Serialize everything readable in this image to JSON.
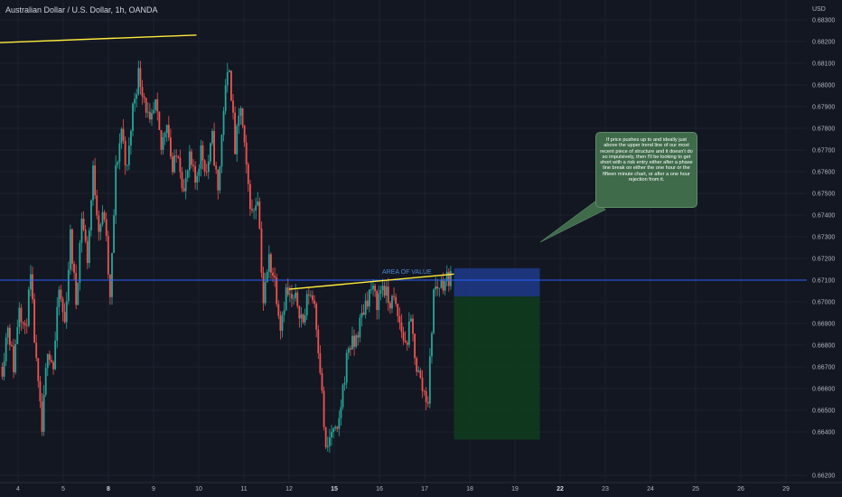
{
  "header": {
    "title": "Australian Dollar / U.S. Dollar, 1h, OANDA"
  },
  "chart_data": {
    "type": "candlestick",
    "title": "Australian Dollar / U.S. Dollar, 1h, OANDA",
    "currency_label": "USD",
    "ylim": [
      0.662,
      0.684
    ],
    "y_ticks": [
      "0.68300",
      "0.68200",
      "0.68100",
      "0.68000",
      "0.67900",
      "0.67800",
      "0.67700",
      "0.67600",
      "0.67500",
      "0.67400",
      "0.67300",
      "0.67200",
      "0.67100",
      "0.67000",
      "0.66900",
      "0.66800",
      "0.66700",
      "0.66600",
      "0.66500",
      "0.66400",
      "0.66200"
    ],
    "x_ticks": [
      "4",
      "5",
      "8",
      "9",
      "10",
      "11",
      "12",
      "15",
      "16",
      "17",
      "18",
      "19",
      "22",
      "23",
      "24",
      "25",
      "26",
      "29"
    ],
    "bold_x_ticks": [
      "8",
      "15",
      "22"
    ],
    "current_price": 0.671,
    "price_path": [
      0.667,
      0.669,
      0.667,
      0.67,
      0.6685,
      0.671,
      0.667,
      0.664,
      0.668,
      0.667,
      0.6705,
      0.669,
      0.673,
      0.67,
      0.674,
      0.672,
      0.676,
      0.6735,
      0.674,
      0.67,
      0.676,
      0.678,
      0.676,
      0.679,
      0.6805,
      0.6795,
      0.678,
      0.679,
      0.677,
      0.6785,
      0.676,
      0.677,
      0.675,
      0.6765,
      0.6755,
      0.677,
      0.676,
      0.6775,
      0.675,
      0.679,
      0.681,
      0.677,
      0.679,
      0.676,
      0.674,
      0.675,
      0.67,
      0.672,
      0.671,
      0.669,
      0.6705,
      0.67,
      0.67,
      0.669,
      0.6705,
      0.67,
      0.667,
      0.663,
      0.664,
      0.6638,
      0.666,
      0.668,
      0.668,
      0.669,
      0.67,
      0.6706,
      0.67,
      0.6708,
      0.67,
      0.67,
      0.669,
      0.668,
      0.669,
      0.667,
      0.666,
      0.6655,
      0.6705,
      0.6708,
      0.671,
      0.6712
    ],
    "trendlines": [
      {
        "name": "upper trend line",
        "start": {
          "x": -0.4,
          "y": 0.68195
        },
        "end": {
          "x": 3.95,
          "y": 0.6823
        }
      },
      {
        "name": "lower trend line",
        "start": {
          "x": 6.0,
          "y": 0.67058
        },
        "end": {
          "x": 9.65,
          "y": 0.67128
        }
      }
    ],
    "current_price_line": 0.671,
    "area_of_value_label": "AREA OF VALUE",
    "short_position": {
      "entry": 0.67024,
      "stop": 0.67155,
      "target": 0.66365,
      "start_x": 9.65,
      "end_x": 11.55
    }
  },
  "annotation": {
    "text": "If price pushes up to and ideally just above the upper trend line of our most recent piece of structure and it doesn't do so impulsively, then I'll be looking to get short with a risk entry either after a phase line break on either the one hour or the fifteen minute chart, or after a one hour rejection from it."
  },
  "colors": {
    "background": "#131722",
    "up_candle": "#26a69a",
    "down_candle": "#ef5350",
    "trendline": "#ffeb3b",
    "price_line": "#2962ff",
    "stop_zone": "#1e3a8a",
    "target_zone": "#0f3b1e",
    "callout": "#3f6b4a"
  }
}
